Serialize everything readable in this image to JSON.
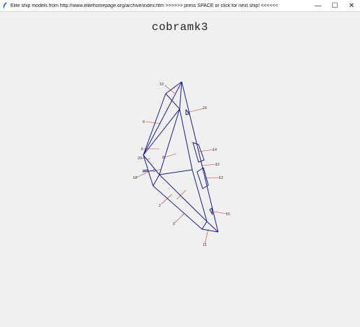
{
  "window": {
    "title": "Elite ship models from http://www.elitehomepage.org/archive/index.htm >>>>>> press SPACE or click for next ship! <<<<<<",
    "minimize_glyph": "—",
    "maximize_glyph": "☐",
    "close_glyph": "✕"
  },
  "ship": {
    "name": "cobramk3",
    "face_labels": [
      "10",
      "16",
      "6",
      "5",
      "14",
      "8",
      "20",
      "12",
      "18",
      "9",
      "13",
      "2",
      "15",
      "3",
      "11"
    ]
  },
  "colors": {
    "wire": "#1a1a8c",
    "normal": "#c0392b",
    "background": "#f0f0f0"
  }
}
